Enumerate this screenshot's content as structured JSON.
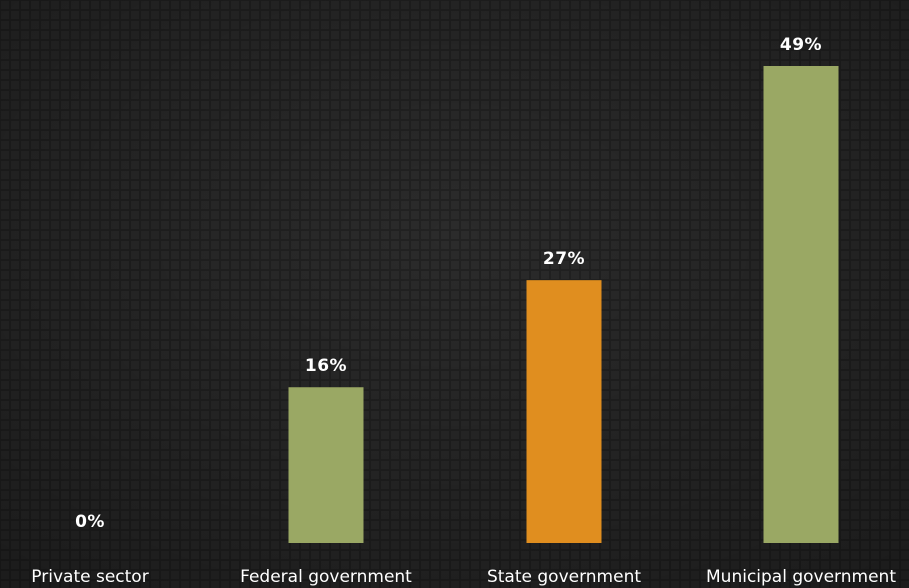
{
  "chart_data": {
    "type": "bar",
    "categories": [
      "Private sector",
      "Federal government",
      "State government",
      "Municipal government"
    ],
    "values": [
      0,
      16,
      27,
      49
    ],
    "value_labels": [
      "0%",
      "16%",
      "27%",
      "49%"
    ],
    "bar_colors": [
      "#9aa864",
      "#9aa864",
      "#e08e1f",
      "#9aa864"
    ],
    "title": "",
    "xlabel": "",
    "ylabel": "",
    "ylim": [
      0,
      49
    ],
    "grid": false,
    "legend": "none"
  },
  "colors": {
    "background": "#262626",
    "background_pattern": "#2e2e2e",
    "text": "#ffffff"
  }
}
